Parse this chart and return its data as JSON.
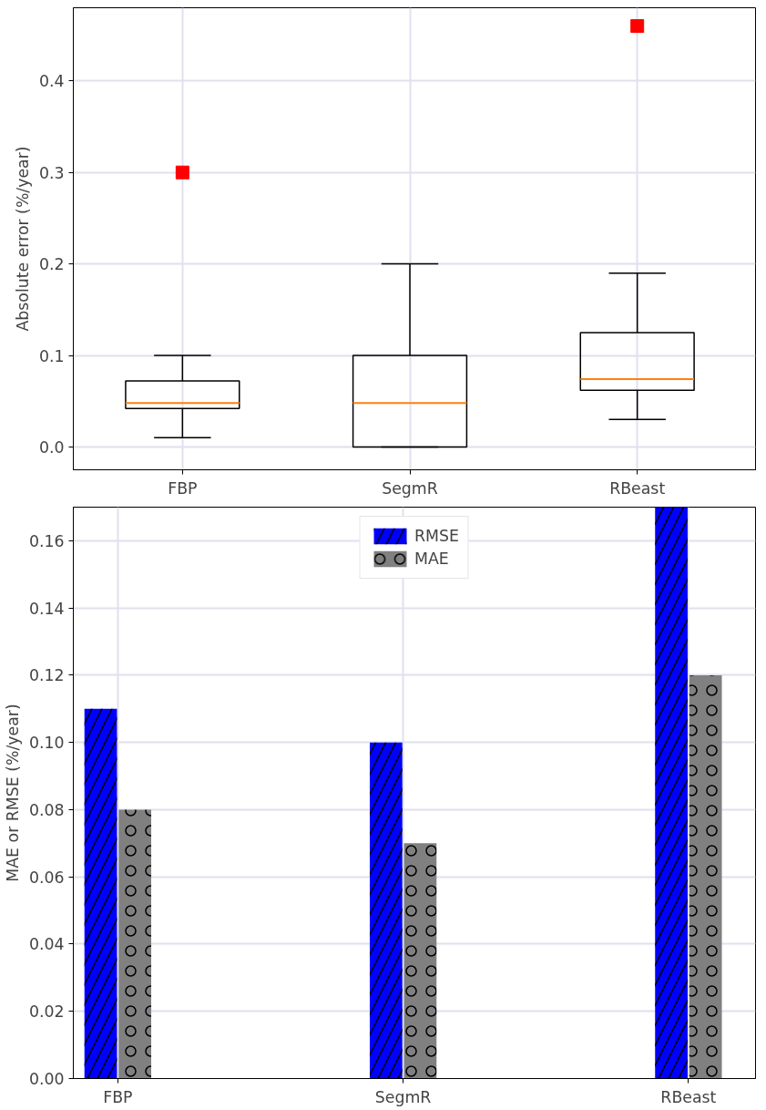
{
  "chart_data": [
    {
      "type": "box",
      "categories": [
        "FBP",
        "SegmR",
        "RBeast"
      ],
      "ylabel": "Absolute error (%/year)",
      "boxes": [
        {
          "low": 0.01,
          "q1": 0.042,
          "median": 0.048,
          "q3": 0.072,
          "high": 0.1,
          "outliers": [
            0.3
          ]
        },
        {
          "low": 0.0,
          "q1": 0.0,
          "median": 0.048,
          "q3": 0.1,
          "high": 0.2
        },
        {
          "low": 0.03,
          "q1": 0.062,
          "median": 0.074,
          "q3": 0.125,
          "high": 0.19,
          "outliers": [
            0.46
          ]
        }
      ],
      "ylim": [
        -0.025,
        0.48
      ],
      "yticks": [
        {
          "value": 0,
          "label": "0.0"
        },
        {
          "value": 0.1,
          "label": "0.1"
        },
        {
          "value": 0.2,
          "label": "0.2"
        },
        {
          "value": 0.3,
          "label": "0.3"
        },
        {
          "value": 0.4,
          "label": "0.4"
        }
      ],
      "marker": "square",
      "grid": true
    },
    {
      "type": "bar",
      "categories": [
        "FBP",
        "SegmR",
        "RBeast"
      ],
      "ylabel": "MAE or RMSE (%/year)",
      "series": [
        {
          "name": "RMSE",
          "color": "#0000ff",
          "values": [
            0.11,
            0.1,
            0.17
          ]
        },
        {
          "name": "MAE",
          "color": "#808080",
          "values": [
            0.08,
            0.07,
            0.12
          ]
        }
      ],
      "ylim": [
        0,
        0.17
      ],
      "yticks": [
        {
          "value": 0,
          "label": "0.00"
        },
        {
          "value": 0.02,
          "label": "0.02"
        },
        {
          "value": 0.04,
          "label": "0.04"
        },
        {
          "value": 0.06,
          "label": "0.06"
        },
        {
          "value": 0.08,
          "label": "0.08"
        },
        {
          "value": 0.1,
          "label": "0.10"
        },
        {
          "value": 0.12,
          "label": "0.12"
        },
        {
          "value": 0.14,
          "label": "0.14"
        },
        {
          "value": 0.16,
          "label": "0.16"
        }
      ],
      "legend": "top",
      "grid": true
    }
  ]
}
